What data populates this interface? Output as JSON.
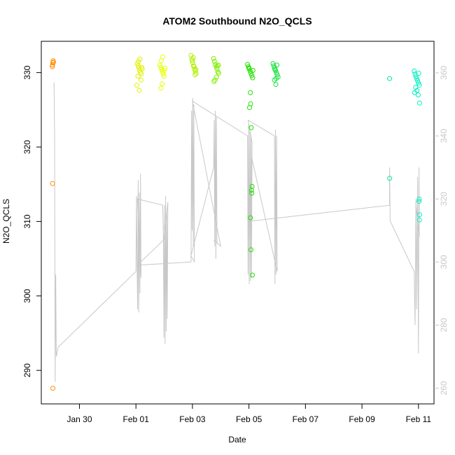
{
  "chart_data": {
    "type": "scatter",
    "title": "ATOM2 Southbound N2O_QCLS",
    "xlabel": "Date",
    "ylabel": "N2O_QCLS",
    "x_tick_labels": [
      "Jan 30",
      "Feb 01",
      "Feb 03",
      "Feb 05",
      "Feb 07",
      "Feb 09",
      "Feb 11"
    ],
    "x_tick_days": [
      30,
      32,
      34,
      36,
      38,
      40,
      42
    ],
    "xlim_days": [
      28.65,
      42.55
    ],
    "ylim": [
      285.5,
      334.2
    ],
    "y_ticks": [
      290,
      300,
      310,
      320,
      330
    ],
    "y2lim": [
      255.0,
      370.0
    ],
    "y2_ticks": [
      260,
      280,
      300,
      320,
      340,
      360
    ],
    "grid": false,
    "point_series": {
      "name": "",
      "shape": "open-circle",
      "color_note": "colored by time, orange -> yellow -> green -> cyan",
      "groups": [
        {
          "color": "#FF8C00",
          "points": [
            [
              29.07,
              331.6
            ],
            [
              29.06,
              331.3
            ],
            [
              29.05,
              331.0
            ],
            [
              29.04,
              330.8
            ],
            [
              29.08,
              331.4
            ],
            [
              29.05,
              315.1
            ],
            [
              29.06,
              287.6
            ]
          ]
        },
        {
          "color": "#E0F000",
          "points": [
            [
              32.05,
              331.2
            ],
            [
              32.08,
              330.9
            ],
            [
              32.11,
              330.6
            ],
            [
              32.13,
              330.3
            ],
            [
              32.16,
              330.0
            ],
            [
              32.19,
              329.8
            ],
            [
              32.22,
              330.5
            ],
            [
              32.09,
              331.5
            ],
            [
              32.14,
              331.8
            ],
            [
              32.07,
              329.5
            ],
            [
              32.18,
              329.0
            ],
            [
              32.12,
              327.6
            ],
            [
              32.03,
              328.3
            ],
            [
              32.2,
              330.7
            ]
          ]
        },
        {
          "color": "#E8FF00",
          "points": [
            [
              32.85,
              331.0
            ],
            [
              32.88,
              330.7
            ],
            [
              32.91,
              330.4
            ],
            [
              32.94,
              330.1
            ],
            [
              32.97,
              329.8
            ],
            [
              33.0,
              330.3
            ],
            [
              33.03,
              330.6
            ],
            [
              32.9,
              331.6
            ],
            [
              32.95,
              332.1
            ],
            [
              32.93,
              328.5
            ],
            [
              32.89,
              327.9
            ],
            [
              32.99,
              329.5
            ]
          ]
        },
        {
          "color": "#B0F000",
          "points": [
            [
              33.95,
              332.3
            ],
            [
              33.98,
              331.8
            ],
            [
              34.01,
              331.3
            ],
            [
              34.04,
              330.9
            ],
            [
              34.07,
              330.5
            ],
            [
              34.1,
              330.2
            ],
            [
              34.13,
              329.9
            ],
            [
              34.06,
              330.8
            ],
            [
              34.0,
              331.6
            ],
            [
              34.09,
              329.7
            ],
            [
              34.03,
              332.0
            ],
            [
              34.12,
              330.4
            ]
          ]
        },
        {
          "color": "#80F000",
          "points": [
            [
              34.75,
              331.9
            ],
            [
              34.78,
              331.5
            ],
            [
              34.81,
              331.1
            ],
            [
              34.84,
              330.8
            ],
            [
              34.87,
              330.5
            ],
            [
              34.9,
              330.1
            ],
            [
              34.93,
              329.9
            ],
            [
              34.8,
              329.0
            ],
            [
              34.85,
              329.4
            ],
            [
              34.76,
              328.8
            ],
            [
              34.92,
              331.0
            ],
            [
              34.88,
              330.9
            ]
          ]
        },
        {
          "color": "#22E000",
          "points": [
            [
              35.95,
              331.1
            ],
            [
              35.98,
              330.8
            ],
            [
              36.01,
              330.5
            ],
            [
              36.04,
              330.2
            ],
            [
              36.07,
              329.9
            ],
            [
              36.1,
              329.6
            ],
            [
              36.13,
              329.3
            ],
            [
              36.05,
              327.3
            ],
            [
              36.06,
              325.8
            ],
            [
              36.02,
              325.3
            ],
            [
              36.08,
              322.6
            ],
            [
              36.11,
              314.7
            ],
            [
              36.1,
              313.8
            ],
            [
              36.09,
              314.2
            ],
            [
              36.05,
              310.5
            ],
            [
              36.07,
              306.2
            ],
            [
              36.12,
              302.8
            ],
            [
              36.0,
              330.6
            ],
            [
              36.14,
              330.3
            ]
          ]
        },
        {
          "color": "#18E040",
          "points": [
            [
              36.85,
              331.2
            ],
            [
              36.88,
              330.9
            ],
            [
              36.91,
              330.6
            ],
            [
              36.94,
              330.3
            ],
            [
              36.97,
              330.0
            ],
            [
              37.0,
              329.7
            ],
            [
              37.03,
              329.4
            ],
            [
              36.9,
              329.0
            ],
            [
              36.95,
              328.4
            ],
            [
              36.99,
              331.0
            ],
            [
              36.92,
              330.4
            ],
            [
              36.96,
              329.2
            ]
          ]
        },
        {
          "color": "#00E890",
          "points": [
            [
              40.98,
              329.2
            ],
            [
              40.98,
              315.8
            ]
          ]
        },
        {
          "color": "#00F0C0",
          "points": [
            [
              41.85,
              330.2
            ],
            [
              41.88,
              329.8
            ],
            [
              41.91,
              329.5
            ],
            [
              41.94,
              329.2
            ],
            [
              41.97,
              328.9
            ],
            [
              42.0,
              328.6
            ],
            [
              42.03,
              328.3
            ],
            [
              41.9,
              328.0
            ],
            [
              41.95,
              327.6
            ],
            [
              41.99,
              327.0
            ],
            [
              42.04,
              325.9
            ],
            [
              41.86,
              327.3
            ],
            [
              42.01,
              329.9
            ],
            [
              42.03,
              313.0
            ],
            [
              42.02,
              312.7
            ],
            [
              42.04,
              310.9
            ],
            [
              42.03,
              310.2
            ]
          ]
        }
      ]
    },
    "line_series": {
      "name": "",
      "color": "#c8c8c8",
      "axis": "right",
      "points": [
        [
          29.1,
          357
        ],
        [
          29.12,
          340
        ],
        [
          29.14,
          262
        ],
        [
          29.16,
          296
        ],
        [
          29.18,
          270
        ],
        [
          29.25,
          273
        ],
        [
          32.0,
          297
        ],
        [
          32.02,
          321
        ],
        [
          32.04,
          300
        ],
        [
          32.06,
          285
        ],
        [
          32.08,
          326
        ],
        [
          32.1,
          284
        ],
        [
          32.12,
          322
        ],
        [
          32.14,
          290
        ],
        [
          32.16,
          328
        ],
        [
          32.18,
          295
        ],
        [
          32.05,
          320
        ],
        [
          32.95,
          318
        ],
        [
          32.97,
          308
        ],
        [
          32.99,
          276
        ],
        [
          33.01,
          318
        ],
        [
          33.03,
          274
        ],
        [
          33.05,
          321
        ],
        [
          33.07,
          278
        ],
        [
          33.09,
          316
        ],
        [
          33.11,
          282
        ],
        [
          33.13,
          319
        ],
        [
          32.98,
          307
        ],
        [
          32.05,
          299
        ],
        [
          33.95,
          300
        ],
        [
          33.97,
          348
        ],
        [
          33.99,
          310
        ],
        [
          34.01,
          352
        ],
        [
          34.03,
          305
        ],
        [
          34.05,
          350
        ],
        [
          34.07,
          300
        ],
        [
          33.95,
          302
        ],
        [
          34.75,
          330
        ],
        [
          34.77,
          345
        ],
        [
          34.79,
          305
        ],
        [
          34.81,
          348
        ],
        [
          34.83,
          301
        ],
        [
          34.85,
          346
        ],
        [
          34.87,
          306
        ],
        [
          34.75,
          307
        ],
        [
          35.0,
          305
        ],
        [
          34.0,
          351
        ],
        [
          35.95,
          340
        ],
        [
          35.97,
          296
        ],
        [
          35.99,
          344
        ],
        [
          36.01,
          293
        ],
        [
          36.03,
          342
        ],
        [
          36.05,
          294
        ],
        [
          36.07,
          340
        ],
        [
          36.09,
          295
        ],
        [
          36.11,
          338
        ],
        [
          35.97,
          345
        ],
        [
          36.9,
          340
        ],
        [
          36.92,
          293
        ],
        [
          36.94,
          342
        ],
        [
          36.96,
          296
        ],
        [
          36.98,
          340
        ],
        [
          37.0,
          297
        ],
        [
          36.1,
          333
        ],
        [
          36.1,
          313
        ],
        [
          40.98,
          318
        ],
        [
          40.98,
          330
        ],
        [
          41.0,
          313
        ],
        [
          41.85,
          297
        ],
        [
          41.88,
          280
        ],
        [
          41.91,
          320
        ],
        [
          41.94,
          285
        ],
        [
          41.97,
          327
        ],
        [
          42.0,
          271
        ],
        [
          42.02,
          330
        ],
        [
          42.03,
          308
        ],
        [
          41.9,
          319
        ]
      ]
    }
  }
}
